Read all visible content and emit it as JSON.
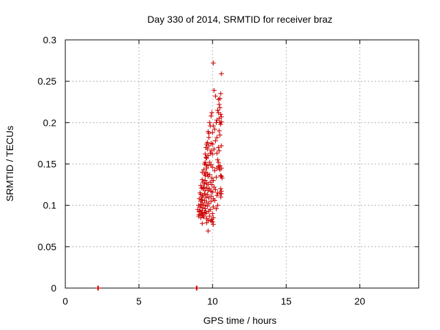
{
  "chart_data": {
    "type": "scatter",
    "title": "Day 330 of 2014, SRMTID for receiver braz",
    "xlabel": "GPS time / hours",
    "ylabel": "SRMTID / TECUs",
    "xlim": [
      0,
      24
    ],
    "ylim": [
      0,
      0.3
    ],
    "grid": true,
    "x_ticks": [
      0,
      5,
      10,
      15,
      20
    ],
    "x_tick_labels": [
      "0",
      "5",
      "10",
      "15",
      "20"
    ],
    "y_ticks": [
      0,
      0.05,
      0.1,
      0.15,
      0.2,
      0.25,
      0.3
    ],
    "y_tick_labels": [
      "0",
      "0.05",
      "0.1",
      "0.15",
      "0.2",
      "0.25",
      "0.3"
    ],
    "colors": {
      "series": "#cc0000",
      "grid": "#a0a0a0",
      "axis": "#000000"
    },
    "series": [
      {
        "name": "SRMTID",
        "marker": "plus",
        "x": [
          10.05,
          10.6,
          10.55,
          10.5,
          10.4,
          10.45,
          10.5,
          10.35,
          10.55,
          10.6,
          10.45,
          10.3,
          10.25,
          10.5,
          10.55,
          10.1,
          10.2,
          9.95,
          9.9,
          10.4,
          10.05,
          10.15,
          9.8,
          9.85,
          9.7,
          9.75,
          9.75,
          9.65,
          10.45,
          10.6,
          10.6,
          10.0,
          10.5,
          10.3,
          10.2,
          9.6,
          9.55,
          9.65,
          9.75,
          9.9,
          10.0,
          10.1,
          10.4,
          10.45,
          10.3,
          9.5,
          9.55,
          9.6,
          9.7,
          9.85,
          9.9,
          10.0,
          10.35,
          10.4,
          10.5,
          10.45,
          9.45,
          9.5,
          9.55,
          9.6,
          9.7,
          9.8,
          9.9,
          10.0,
          10.15,
          10.3,
          10.4,
          10.5,
          10.6,
          9.3,
          9.4,
          9.45,
          9.5,
          9.55,
          9.65,
          9.7,
          9.8,
          9.95,
          10.05,
          10.25,
          10.55,
          9.3,
          9.35,
          9.45,
          9.5,
          9.6,
          9.7,
          9.85,
          9.95,
          10.1,
          10.6,
          10.65,
          9.2,
          9.25,
          9.35,
          9.4,
          9.5,
          9.6,
          9.7,
          9.8,
          9.9,
          10.0,
          10.2,
          10.35,
          10.55,
          10.6,
          9.15,
          9.2,
          9.3,
          9.35,
          9.45,
          9.55,
          9.65,
          9.75,
          9.9,
          10.05,
          10.3,
          10.5,
          10.6,
          9.1,
          9.2,
          9.25,
          9.3,
          9.45,
          9.6,
          9.75,
          9.9,
          10.15,
          10.55,
          9.05,
          9.15,
          9.2,
          9.3,
          9.4,
          9.5,
          9.65,
          9.85,
          10.05,
          10.35,
          9.0,
          9.1,
          9.2,
          9.3,
          9.45,
          9.55,
          9.75,
          10.0,
          10.25,
          9.05,
          9.1,
          9.2,
          9.3,
          9.4,
          9.6,
          9.8,
          10.05,
          9.1,
          9.25,
          9.35,
          9.5,
          9.7,
          10.0,
          9.3,
          9.6,
          9.95,
          10.05,
          9.9,
          9.7,
          9.55,
          2.2,
          2.25,
          8.9,
          8.95
        ],
        "y": [
          0.272,
          0.259,
          0.235,
          0.229,
          0.228,
          0.222,
          0.218,
          0.215,
          0.21,
          0.207,
          0.205,
          0.203,
          0.2,
          0.2,
          0.198,
          0.239,
          0.232,
          0.212,
          0.208,
          0.212,
          0.196,
          0.192,
          0.2,
          0.196,
          0.189,
          0.187,
          0.182,
          0.176,
          0.19,
          0.172,
          0.201,
          0.188,
          0.185,
          0.182,
          0.178,
          0.174,
          0.17,
          0.168,
          0.172,
          0.175,
          0.174,
          0.168,
          0.17,
          0.166,
          0.163,
          0.162,
          0.158,
          0.157,
          0.16,
          0.163,
          0.166,
          0.162,
          0.155,
          0.152,
          0.148,
          0.145,
          0.15,
          0.152,
          0.149,
          0.145,
          0.148,
          0.152,
          0.149,
          0.146,
          0.142,
          0.145,
          0.147,
          0.143,
          0.145,
          0.14,
          0.143,
          0.138,
          0.136,
          0.14,
          0.138,
          0.135,
          0.137,
          0.133,
          0.13,
          0.134,
          0.136,
          0.131,
          0.128,
          0.126,
          0.13,
          0.127,
          0.125,
          0.128,
          0.125,
          0.122,
          0.135,
          0.133,
          0.124,
          0.121,
          0.12,
          0.122,
          0.118,
          0.121,
          0.118,
          0.12,
          0.117,
          0.116,
          0.119,
          0.115,
          0.12,
          0.117,
          0.115,
          0.113,
          0.11,
          0.112,
          0.114,
          0.11,
          0.113,
          0.109,
          0.111,
          0.108,
          0.112,
          0.115,
          0.114,
          0.108,
          0.105,
          0.107,
          0.103,
          0.106,
          0.104,
          0.102,
          0.105,
          0.106,
          0.11,
          0.1,
          0.098,
          0.101,
          0.097,
          0.1,
          0.096,
          0.099,
          0.095,
          0.098,
          0.1,
          0.095,
          0.093,
          0.092,
          0.094,
          0.091,
          0.09,
          0.093,
          0.09,
          0.096,
          0.087,
          0.089,
          0.085,
          0.088,
          0.086,
          0.084,
          0.087,
          0.085,
          0.092,
          0.09,
          0.088,
          0.1,
          0.082,
          0.08,
          0.078,
          0.079,
          0.083,
          0.077,
          0.081,
          0.069,
          0.092,
          0.0,
          0.0,
          0.0,
          0.0
        ]
      }
    ]
  }
}
